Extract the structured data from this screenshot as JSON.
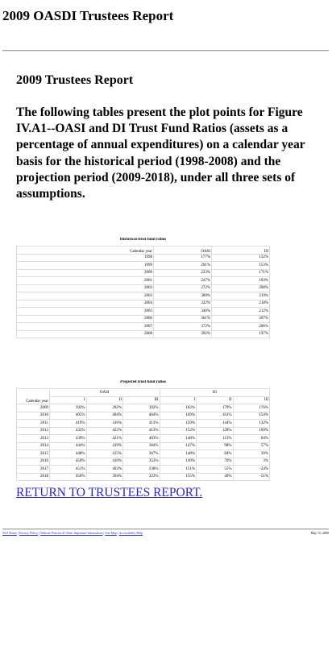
{
  "header": {
    "title": "2009 OASDI Trustees Report"
  },
  "main": {
    "heading": "2009 Trustees Report",
    "intro": "The following tables present the plot points for Figure IV.A1--OASI and DI Trust Fund Ratios (assets as a percentage of annual expenditures) on a calendar year basis for the historical period (1998-2008) and the projection period (2009-2018), under all three sets of assumptions."
  },
  "historical": {
    "caption": "Historical trust fund ratios",
    "columns": [
      "Calendar year",
      "OASI",
      "DI"
    ],
    "rows": [
      [
        "1998",
        "177%",
        "132%"
      ],
      [
        "1999",
        "201%",
        "153%"
      ],
      [
        "2000",
        "223%",
        "171%"
      ],
      [
        "2001",
        "247%",
        "193%"
      ],
      [
        "2002",
        "272%",
        "208%"
      ],
      [
        "2003",
        "300%",
        "219%"
      ],
      [
        "2004",
        "322%",
        "218%"
      ],
      [
        "2005",
        "340%",
        "212%"
      ],
      [
        "2006",
        "361%",
        "207%"
      ],
      [
        "2007",
        "372%",
        "206%"
      ],
      [
        "2008",
        "392%",
        "197%"
      ]
    ]
  },
  "projected": {
    "caption": "Projected trust fund ratios",
    "year_header": "Calendar year",
    "groups": [
      "OASI",
      "DI"
    ],
    "subheaders": [
      "I",
      "II",
      "III",
      "I",
      "II",
      "III"
    ],
    "rows": [
      [
        "2009",
        "392%",
        "392%",
        "392%",
        "182%",
        "179%",
        "176%"
      ],
      [
        "2010",
        "405%",
        "404%",
        "404%",
        "169%",
        "161%",
        "154%"
      ],
      [
        "2011",
        "419%",
        "416%",
        "413%",
        "159%",
        "144%",
        "132%"
      ],
      [
        "2012",
        "432%",
        "422%",
        "413%",
        "152%",
        "128%",
        "109%"
      ],
      [
        "2013",
        "439%",
        "421%",
        "403%",
        "148%",
        "113%",
        "84%"
      ],
      [
        "2014",
        "444%",
        "419%",
        "384%",
        "147%",
        "98%",
        "57%"
      ],
      [
        "2015",
        "448%",
        "415%",
        "367%",
        "148%",
        "84%",
        "30%"
      ],
      [
        "2016",
        "450%",
        "410%",
        "352%",
        "149%",
        "70%",
        "3%"
      ],
      [
        "2017",
        "451%",
        "403%",
        "338%",
        "151%",
        "55%",
        "-24%"
      ],
      [
        "2018",
        "450%",
        "394%",
        "323%",
        "155%",
        "40%",
        "-51%"
      ]
    ]
  },
  "return_link": "RETURN TO TRUSTEES REPORT.",
  "footer": {
    "links": [
      "SSA Home",
      "Privacy Policy",
      "Website Policies & Other Important Information",
      "Site Map",
      "Accessibility Help"
    ],
    "date": "May 15, 2009"
  }
}
